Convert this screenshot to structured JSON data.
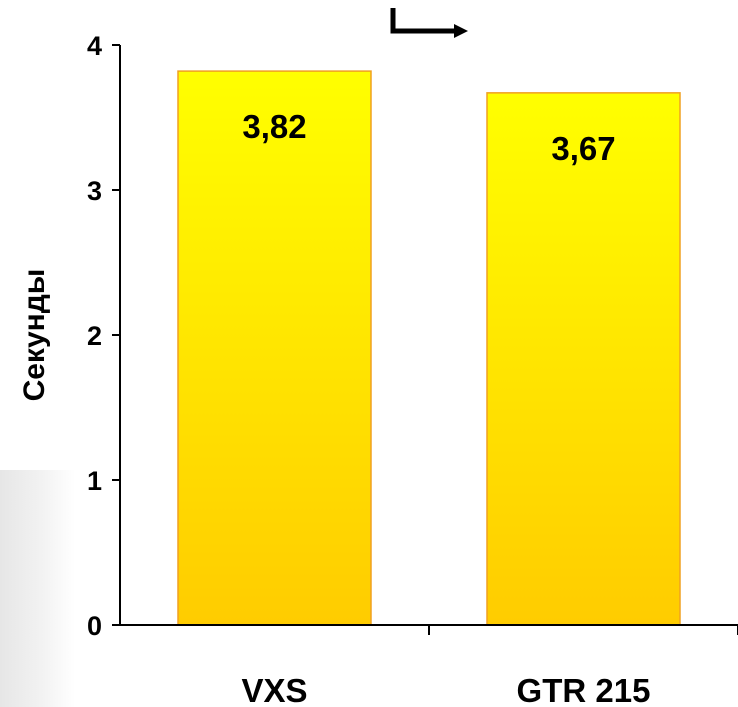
{
  "chart_data": {
    "type": "bar",
    "categories": [
      "VXS",
      "GTR 215"
    ],
    "values": [
      3.82,
      3.67
    ],
    "data_labels": [
      "3,82",
      "3,67"
    ],
    "title": "",
    "xlabel": "",
    "ylabel": "Секунды",
    "ylim": [
      0,
      4
    ],
    "yticks": [
      "0",
      "1",
      "2",
      "3",
      "4"
    ],
    "grid": false,
    "legend": "none",
    "colors": {
      "bar_top": "#ffff00",
      "bar_bottom": "#ffcc00",
      "bar_border": "#f0a020",
      "axis": "#000000"
    }
  },
  "annotation": {
    "icon": "right-arrow-icon"
  }
}
